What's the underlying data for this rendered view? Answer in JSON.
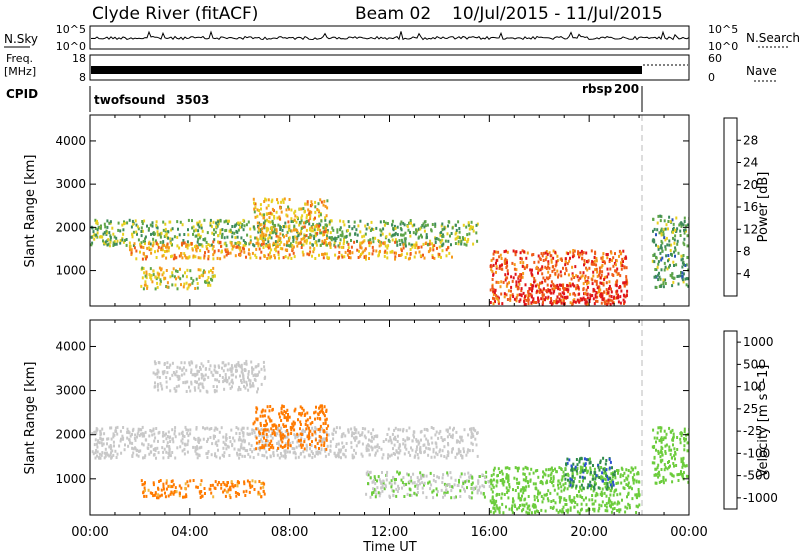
{
  "header": {
    "station": "Clyde River (fitACF)",
    "beam": "Beam 02",
    "date_range": "10/Jul/2015 - 11/Jul/2015"
  },
  "noise_panel": {
    "left_label": "N.Sky",
    "left_ticks": [
      "10^5",
      "10^0"
    ],
    "right_label": "N.Search",
    "right_ticks": [
      "10^5",
      "10^0"
    ]
  },
  "freq_panel": {
    "left_label_1": "Freq.",
    "left_label_2": "[MHz]",
    "left_ticks": [
      "18",
      "8"
    ],
    "right_label": "Nave",
    "right_ticks": [
      "60",
      "0"
    ]
  },
  "cpid_panel": {
    "label": "CPID",
    "programs": [
      {
        "name": "twofsound",
        "id": "3503",
        "start": "00:00"
      },
      {
        "name": "rbsp",
        "id": "200",
        "start": "22:00"
      }
    ]
  },
  "x_axis": {
    "label": "Time UT",
    "ticks": [
      "00:00",
      "04:00",
      "08:00",
      "12:00",
      "16:00",
      "20:00",
      "00:00"
    ]
  },
  "colors": {
    "power_scale": [
      "#0b24e6",
      "#2a55b8",
      "#3d8a5a",
      "#5ea548",
      "#e8d020",
      "#f59a1a",
      "#ef5b18",
      "#e0141a"
    ],
    "velocity_scale": [
      "#ff0000",
      "#ff7a00",
      "#f2b63c",
      "#c8c8c8",
      "#c8c8c8",
      "#6ccc3c",
      "#2f8b4a",
      "#2a4fd0"
    ],
    "ground_scatter": "#c8c8c8"
  },
  "chart_data": [
    {
      "type": "heatmap",
      "title": "",
      "xlabel": "Time UT",
      "ylabel": "Slant Range [km]",
      "xlim": [
        0,
        24
      ],
      "ylim": [
        180,
        4600
      ],
      "yticks": [
        1000,
        2000,
        3000,
        4000
      ],
      "colorbar": {
        "label": "Power [dB]",
        "range": [
          0,
          32
        ],
        "ticks": [
          4,
          8,
          12,
          16,
          20,
          24,
          28
        ]
      },
      "echo_regions": [
        {
          "t_start": 0.0,
          "t_end": 15.5,
          "range_start": 1600,
          "range_end": 2200,
          "power": 14
        },
        {
          "t_start": 1.5,
          "t_end": 14.5,
          "range_start": 1300,
          "range_end": 1700,
          "power": 22
        },
        {
          "t_start": 6.5,
          "t_end": 9.5,
          "range_start": 1700,
          "range_end": 2700,
          "power": 20
        },
        {
          "t_start": 2.0,
          "t_end": 5.0,
          "range_start": 600,
          "range_end": 1100,
          "power": 18
        },
        {
          "t_start": 16.0,
          "t_end": 21.5,
          "range_start": 250,
          "range_end": 1500,
          "power": 26
        },
        {
          "t_start": 17.5,
          "t_end": 21.5,
          "range_start": 250,
          "range_end": 700,
          "power": 30
        },
        {
          "t_start": 22.5,
          "t_end": 24.0,
          "range_start": 600,
          "range_end": 2300,
          "power": 12
        }
      ]
    },
    {
      "type": "heatmap",
      "title": "",
      "xlabel": "Time UT",
      "ylabel": "Slant Range [km]",
      "xlim": [
        0,
        24
      ],
      "ylim": [
        180,
        4600
      ],
      "yticks": [
        1000,
        2000,
        3000,
        4000
      ],
      "colorbar": {
        "label": "Velocity [m s^-1]",
        "tick_labels": [
          "1000",
          "500",
          "100",
          "25",
          "-25",
          "-100",
          "-500",
          "-1000"
        ]
      },
      "echo_regions": [
        {
          "t_start": 0.0,
          "t_end": 15.5,
          "range_start": 1500,
          "range_end": 2200,
          "velocity": 0,
          "ground_scatter": true
        },
        {
          "t_start": 2.5,
          "t_end": 7.0,
          "range_start": 3000,
          "range_end": 3700,
          "velocity": 0,
          "ground_scatter": true
        },
        {
          "t_start": 6.5,
          "t_end": 9.5,
          "range_start": 1700,
          "range_end": 2700,
          "velocity": -200
        },
        {
          "t_start": 2.0,
          "t_end": 7.0,
          "range_start": 600,
          "range_end": 1000,
          "velocity": -150
        },
        {
          "t_start": 11.0,
          "t_end": 16.0,
          "range_start": 600,
          "range_end": 1200,
          "velocity": 80
        },
        {
          "t_start": 16.0,
          "t_end": 22.0,
          "range_start": 250,
          "range_end": 1300,
          "velocity": 200
        },
        {
          "t_start": 19.0,
          "t_end": 21.0,
          "range_start": 800,
          "range_end": 1500,
          "velocity": 800
        },
        {
          "t_start": 22.5,
          "t_end": 24.0,
          "range_start": 900,
          "range_end": 2200,
          "velocity": 300
        }
      ]
    }
  ]
}
